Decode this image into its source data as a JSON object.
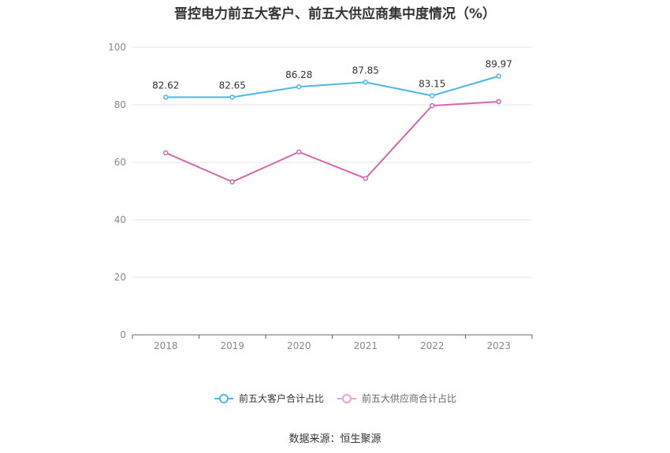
{
  "title": "晋控电力前五大客户、前五大供应商集中度情况（%）",
  "source": "数据来源：恒生聚源",
  "colors": {
    "customers": "#4fb6ea",
    "suppliers": "#d567b1",
    "grid": "#e3e6ef",
    "axis": "#666666"
  },
  "chart_data": {
    "type": "line",
    "title": "晋控电力前五大客户、前五大供应商集中度情况（%）",
    "xlabel": "",
    "ylabel": "",
    "categories": [
      "2018",
      "2019",
      "2020",
      "2021",
      "2022",
      "2023"
    ],
    "ylim": [
      0,
      100
    ],
    "yticks": [
      0,
      20,
      40,
      60,
      80,
      100
    ],
    "grid": true,
    "legend": "bottom-center",
    "series": [
      {
        "name": "前五大客户合计占比",
        "values": [
          82.62,
          82.65,
          86.28,
          87.85,
          83.15,
          89.97
        ],
        "show_labels": true
      },
      {
        "name": "前五大供应商合计占比",
        "values": [
          63.3,
          53.2,
          63.6,
          54.4,
          79.7,
          81.1
        ],
        "show_labels": false
      }
    ]
  }
}
